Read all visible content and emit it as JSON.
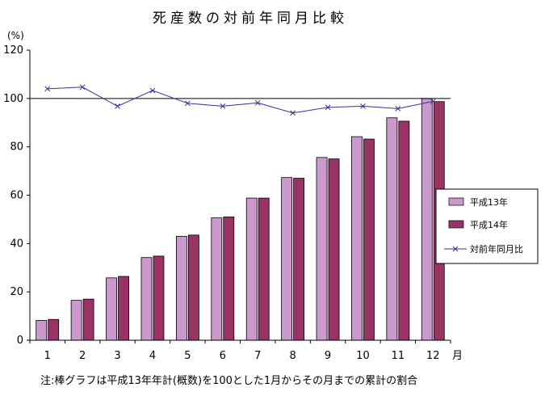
{
  "chart_data": {
    "type": "bar",
    "title": "死産数の対前年同月比較",
    "y_unit": "(%)",
    "x_unit": "月",
    "categories": [
      "1",
      "2",
      "3",
      "4",
      "5",
      "6",
      "7",
      "8",
      "9",
      "10",
      "11",
      "12"
    ],
    "ylim": [
      0,
      120
    ],
    "yticks": [
      0,
      20,
      40,
      60,
      80,
      100,
      120
    ],
    "reference_line": 100,
    "series": [
      {
        "name": "平成13年",
        "type": "bar",
        "color": "#cc99cc",
        "values": [
          8.2,
          16.5,
          25.8,
          34.2,
          43.0,
          50.6,
          58.8,
          67.3,
          75.6,
          84.2,
          92.0,
          100.0
        ]
      },
      {
        "name": "平成14年",
        "type": "bar",
        "color": "#993366",
        "values": [
          8.6,
          17.0,
          26.4,
          34.8,
          43.5,
          51.0,
          58.8,
          67.0,
          75.0,
          83.2,
          90.6,
          98.7
        ]
      },
      {
        "name": "対前年同月比",
        "type": "line",
        "color": "#333399",
        "marker": "x",
        "values": [
          104.0,
          104.7,
          96.8,
          103.3,
          98.0,
          96.8,
          98.2,
          94.0,
          96.3,
          96.8,
          95.8,
          98.8
        ]
      }
    ],
    "legend_position": "right",
    "grid": false,
    "note": "注:棒グラフは平成13年年計(概数)を100とした1月からその月までの累計の割合"
  }
}
